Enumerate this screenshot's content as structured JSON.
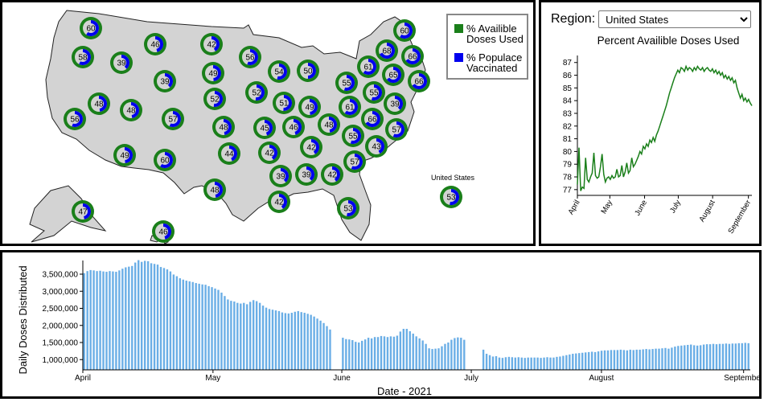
{
  "map": {
    "legend": [
      {
        "label": "% Availible Doses Used",
        "color": "#1a7f1a"
      },
      {
        "label": "% Populace Vaccinated",
        "color": "#0000ee"
      }
    ],
    "us_label": "United States",
    "colors": {
      "land": "#d3d3d3",
      "outer_ring": "#1a7f1a",
      "inner_fill": "#0000ee",
      "inner_bg": "#d3d3d3"
    },
    "states": [
      {
        "value": 60,
        "used": 87
      },
      {
        "value": 58,
        "used": 85
      },
      {
        "value": 39,
        "used": 84
      },
      {
        "value": 46,
        "used": 80
      },
      {
        "value": 42,
        "used": 82
      },
      {
        "value": 56,
        "used": 86
      },
      {
        "value": 49,
        "used": 84
      },
      {
        "value": 39,
        "used": 83
      },
      {
        "value": 54,
        "used": 86
      },
      {
        "value": 50,
        "used": 85
      },
      {
        "value": 52,
        "used": 85
      },
      {
        "value": 52,
        "used": 84
      },
      {
        "value": 48,
        "used": 84
      },
      {
        "value": 48,
        "used": 82
      },
      {
        "value": 56,
        "used": 86
      },
      {
        "value": 57,
        "used": 86
      },
      {
        "value": 51,
        "used": 85
      },
      {
        "value": 49,
        "used": 83
      },
      {
        "value": 46,
        "used": 82
      },
      {
        "value": 48,
        "used": 83
      },
      {
        "value": 45,
        "used": 84
      },
      {
        "value": 48,
        "used": 85
      },
      {
        "value": 49,
        "used": 82
      },
      {
        "value": 60,
        "used": 87
      },
      {
        "value": 44,
        "used": 83
      },
      {
        "value": 42,
        "used": 82
      },
      {
        "value": 42,
        "used": 81
      },
      {
        "value": 39,
        "used": 80
      },
      {
        "value": 39,
        "used": 81
      },
      {
        "value": 42,
        "used": 80
      },
      {
        "value": 48,
        "used": 83
      },
      {
        "value": 42,
        "used": 82
      },
      {
        "value": 47,
        "used": 85
      },
      {
        "value": 55,
        "used": 86
      },
      {
        "value": 53,
        "used": 85
      },
      {
        "value": 60,
        "used": 88
      },
      {
        "value": 68,
        "used": 89
      },
      {
        "value": 66,
        "used": 89
      },
      {
        "value": 61,
        "used": 88
      },
      {
        "value": 65,
        "used": 88
      },
      {
        "value": 66,
        "used": 89
      },
      {
        "value": 55,
        "used": 86
      },
      {
        "value": 61,
        "used": 87
      },
      {
        "value": 39,
        "used": 83
      },
      {
        "value": 66,
        "used": 88
      },
      {
        "value": 55,
        "used": 86
      },
      {
        "value": 57,
        "used": 86
      },
      {
        "value": 43,
        "used": 83
      },
      {
        "value": 57,
        "used": 86
      },
      {
        "value": 46,
        "used": 84
      }
    ],
    "us": {
      "value": 53,
      "used": 85
    }
  },
  "region": {
    "label": "Region:",
    "selected": "United States",
    "colors": {
      "line": "#1a7f1a"
    }
  },
  "line_chart": {
    "title": "Percent Availible Doses Used",
    "y_ticks": [
      "77",
      "78",
      "79",
      "80",
      "81",
      "82",
      "83",
      "84",
      "85",
      "86",
      "87"
    ],
    "x_ticks": [
      "April",
      "May",
      "June",
      "July",
      "August",
      "September"
    ]
  },
  "bar_chart": {
    "ylabel": "Daily Doses Distributed",
    "xlabel": "Date - 2021",
    "y_ticks": [
      "1,000,000",
      "1,500,000",
      "2,000,000",
      "2,500,000",
      "3,000,000",
      "3,500,000"
    ],
    "x_ticks": [
      "April",
      "May",
      "June",
      "July",
      "August",
      "September"
    ],
    "colors": {
      "bar": "#6aaee6"
    }
  },
  "chart_data": [
    {
      "type": "line",
      "title": "Percent Availible Doses Used",
      "ylim": [
        76.8,
        87.3
      ],
      "x_range": [
        "2021-04-01",
        "2021-09-06"
      ],
      "x_tick_labels": [
        "April",
        "May",
        "June",
        "July",
        "August",
        "September"
      ],
      "y_tick_values": [
        77,
        78,
        79,
        80,
        81,
        82,
        83,
        84,
        85,
        86,
        87
      ],
      "series": [
        {
          "name": "United States",
          "values": [
            77.4,
            80.3,
            76.9,
            77.2,
            77.1,
            79.5,
            77.8,
            77.6,
            78.0,
            78.3,
            79.9,
            78.1,
            77.9,
            78.0,
            78.8,
            79.8,
            78.2,
            77.6,
            77.9,
            78.0,
            77.8,
            78.1,
            77.9,
            78.0,
            78.6,
            78.0,
            78.1,
            78.9,
            78.0,
            78.4,
            79.1,
            78.3,
            78.5,
            79.5,
            78.8,
            79.0,
            79.3,
            79.6,
            80.0,
            79.8,
            80.4,
            80.2,
            80.6,
            80.4,
            80.9,
            80.7,
            81.1,
            80.8,
            81.3,
            81.6,
            82.0,
            82.4,
            82.8,
            83.2,
            83.6,
            84.1,
            84.6,
            85.0,
            85.4,
            85.8,
            86.1,
            86.4,
            86.2,
            86.6,
            86.5,
            86.3,
            86.7,
            86.4,
            86.6,
            86.5,
            86.3,
            86.6,
            86.4,
            86.7,
            86.5,
            86.4,
            86.6,
            86.3,
            86.5,
            86.6,
            86.4,
            86.3,
            86.5,
            86.2,
            86.4,
            86.1,
            86.3,
            86.0,
            86.2,
            85.8,
            86.0,
            85.7,
            85.9,
            85.6,
            85.8,
            85.4,
            85.6,
            85.0,
            84.6,
            84.2,
            84.5,
            84.0,
            84.2,
            83.9,
            84.1,
            83.8,
            83.6
          ]
        }
      ]
    },
    {
      "type": "bar",
      "title": "",
      "xlabel": "Date - 2021",
      "ylabel": "Daily Doses Distributed",
      "ylim": [
        700000,
        3900000
      ],
      "x_range": [
        "2021-04-01",
        "2021-09-06"
      ],
      "y_tick_values": [
        1000000,
        1500000,
        2000000,
        2500000,
        3000000,
        3500000
      ],
      "series": [
        {
          "name": "Daily Doses Distributed",
          "values": [
            3530000,
            3590000,
            3620000,
            3610000,
            3590000,
            3600000,
            3580000,
            3570000,
            3590000,
            3580000,
            3570000,
            3610000,
            3660000,
            3700000,
            3720000,
            3740000,
            3840000,
            3910000,
            3860000,
            3890000,
            3880000,
            3820000,
            3800000,
            3780000,
            3710000,
            3680000,
            3640000,
            3580000,
            3490000,
            3440000,
            3380000,
            3340000,
            3310000,
            3290000,
            3270000,
            3240000,
            3220000,
            3200000,
            3190000,
            3150000,
            3120000,
            3080000,
            3040000,
            2960000,
            2860000,
            2760000,
            2720000,
            2700000,
            2660000,
            2640000,
            2660000,
            2620000,
            2690000,
            2740000,
            2710000,
            2660000,
            2580000,
            2520000,
            2480000,
            2460000,
            2440000,
            2420000,
            2380000,
            2360000,
            2350000,
            2370000,
            2400000,
            2420000,
            2390000,
            2370000,
            2340000,
            2310000,
            2260000,
            2200000,
            2140000,
            2070000,
            1980000,
            1880000,
            null,
            null,
            null,
            1640000,
            1600000,
            1590000,
            1570000,
            1520000,
            1500000,
            1550000,
            1590000,
            1640000,
            1620000,
            1660000,
            1660000,
            1690000,
            1680000,
            1660000,
            1680000,
            1670000,
            1700000,
            1820000,
            1900000,
            1900000,
            1830000,
            1760000,
            1680000,
            1620000,
            1560000,
            1460000,
            1330000,
            1310000,
            1320000,
            1330000,
            1390000,
            1460000,
            1500000,
            1580000,
            1630000,
            1650000,
            1640000,
            1580000,
            null,
            null,
            null,
            null,
            null,
            1290000,
            1170000,
            1130000,
            1090000,
            1100000,
            1060000,
            1050000,
            1070000,
            1080000,
            1070000,
            1060000,
            1070000,
            1060000,
            1050000,
            1060000,
            1060000,
            1060000,
            1060000,
            1050000,
            1060000,
            1070000,
            1060000,
            1060000,
            1080000,
            1090000,
            1110000,
            1130000,
            1150000,
            1170000,
            1180000,
            1190000,
            1200000,
            1210000,
            1220000,
            1230000,
            1220000,
            1240000,
            1260000,
            1270000,
            1270000,
            1280000,
            1280000,
            1280000,
            1290000,
            1280000,
            1270000,
            1290000,
            1280000,
            1290000,
            1290000,
            1300000,
            1310000,
            1300000,
            1310000,
            1320000,
            1320000,
            1330000,
            1340000,
            1320000,
            1350000,
            1380000,
            1400000,
            1410000,
            1420000,
            1430000,
            1440000,
            1420000,
            1410000,
            1420000,
            1440000,
            1450000,
            1450000,
            1460000,
            1450000,
            1460000,
            1460000,
            1470000,
            1460000,
            1470000,
            1470000,
            1480000,
            1480000,
            1490000,
            1480000
          ]
        }
      ]
    }
  ]
}
